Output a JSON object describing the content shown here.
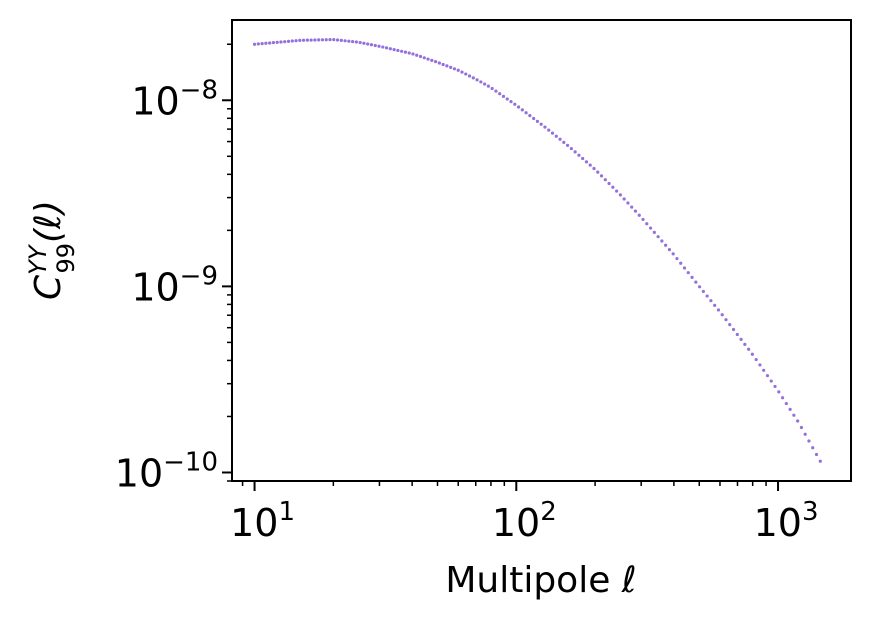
{
  "chart_data": {
    "type": "scatter",
    "title": "",
    "xlabel": "Multipole ℓ",
    "ylabel": "C",
    "ylabel_sup": "YY",
    "ylabel_sub": "99",
    "ylabel_arg": "(ℓ)",
    "xscale": "log",
    "yscale": "log",
    "xlim": [
      8.2,
      1900
    ],
    "ylim": [
      9e-11,
      2.7e-08
    ],
    "grid": false,
    "legend": "none",
    "x_ticks": [
      {
        "value": 10,
        "base": "10",
        "exp": "1"
      },
      {
        "value": 100,
        "base": "10",
        "exp": "2"
      },
      {
        "value": 1000,
        "base": "10",
        "exp": "3"
      }
    ],
    "y_ticks": [
      {
        "value": 1e-10,
        "base": "10",
        "exp": "−10"
      },
      {
        "value": 1e-09,
        "base": "10",
        "exp": "−9"
      },
      {
        "value": 1e-08,
        "base": "10",
        "exp": "−8"
      }
    ],
    "series": [
      {
        "color": "#9370DB",
        "points": [
          [
            10,
            2e-08
          ],
          [
            15,
            2.1e-08
          ],
          [
            20,
            2.12e-08
          ],
          [
            25,
            2.05e-08
          ],
          [
            30,
            1.95e-08
          ],
          [
            40,
            1.78e-08
          ],
          [
            50,
            1.6e-08
          ],
          [
            60,
            1.45e-08
          ],
          [
            70,
            1.3e-08
          ],
          [
            80,
            1.17e-08
          ],
          [
            100,
            9.4e-09
          ],
          [
            130,
            7.1e-09
          ],
          [
            160,
            5.6e-09
          ],
          [
            200,
            4.25e-09
          ],
          [
            250,
            3.1e-09
          ],
          [
            300,
            2.35e-09
          ],
          [
            400,
            1.48e-09
          ],
          [
            500,
            1e-09
          ],
          [
            600,
            7.3e-10
          ],
          [
            700,
            5.5e-10
          ],
          [
            800,
            4.3e-10
          ],
          [
            1000,
            2.75e-10
          ],
          [
            1200,
            1.85e-10
          ],
          [
            1450,
            1.15e-10
          ]
        ]
      }
    ]
  }
}
